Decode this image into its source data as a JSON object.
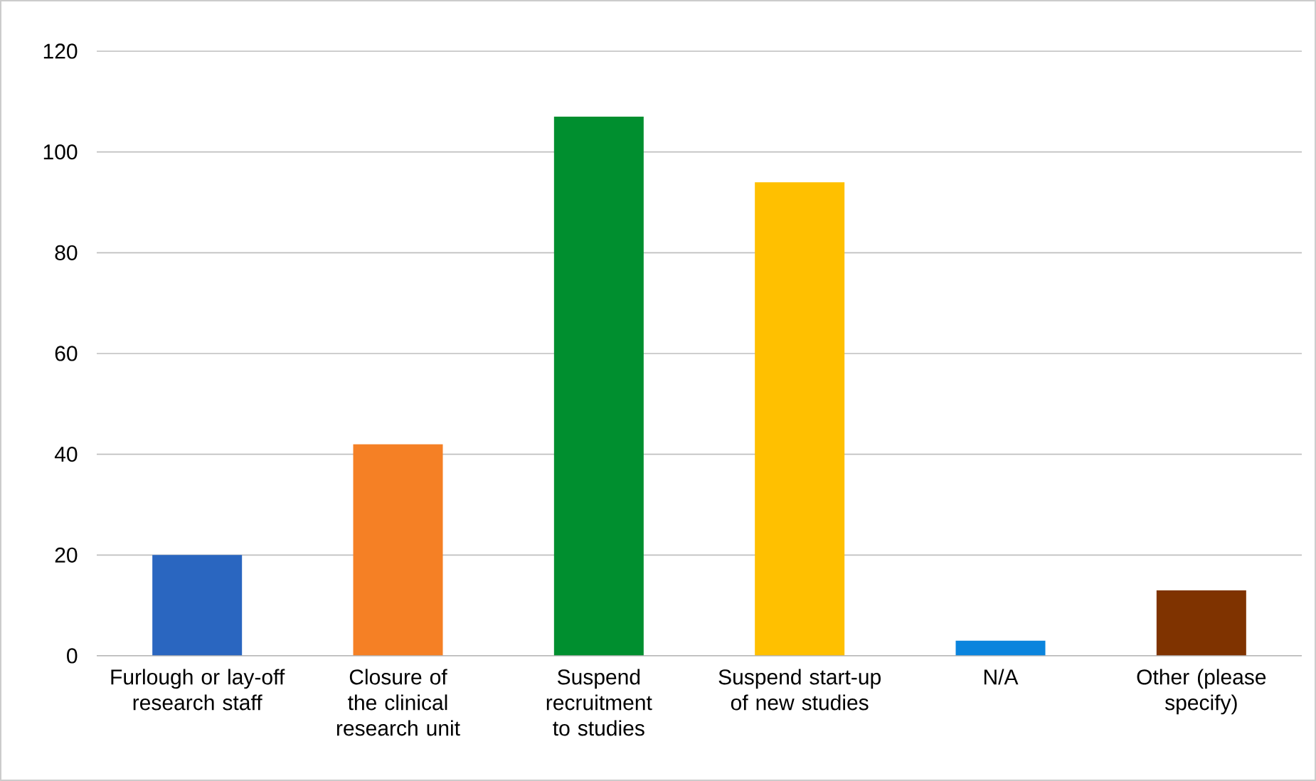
{
  "chart_data": {
    "type": "bar",
    "categories": [
      "Furlough or lay-off research staff",
      "Closure of the clinical research unit",
      "Suspend recruitment to studies",
      "Suspend start-up of new studies",
      "N/A",
      "Other (please specify)"
    ],
    "values": [
      20,
      42,
      107,
      94,
      3,
      13
    ],
    "colors": [
      "#2a66c0",
      "#f58025",
      "#008f2f",
      "#ffc000",
      "#0a84dd",
      "#7f3300"
    ],
    "ylim": [
      0,
      120
    ],
    "yticks": [
      0,
      20,
      40,
      60,
      80,
      100,
      120
    ],
    "grid": "y"
  }
}
